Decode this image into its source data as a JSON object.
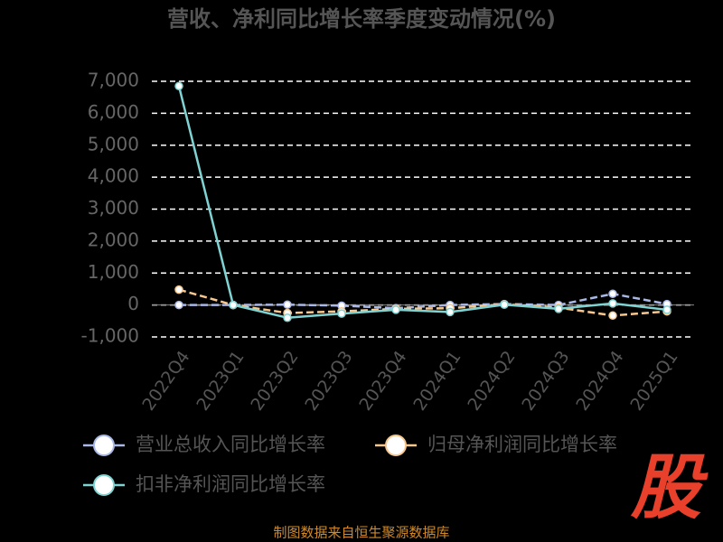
{
  "chart_data": {
    "type": "line",
    "title": "营收、净利同比增长率季度变动情况(%)",
    "categories": [
      "2022Q4",
      "2023Q1",
      "2023Q2",
      "2023Q3",
      "2023Q4",
      "2024Q1",
      "2024Q2",
      "2024Q3",
      "2024Q4",
      "2025Q1"
    ],
    "series": [
      {
        "name": "营业总收入同比增长率",
        "color": "#a9b8e6",
        "values": [
          0,
          0,
          10,
          -20,
          -100,
          0,
          30,
          0,
          350,
          30
        ]
      },
      {
        "name": "归母净利润同比增长率",
        "color": "#f7c78e",
        "values": [
          480,
          0,
          -250,
          -200,
          -120,
          -100,
          20,
          -80,
          -330,
          -200
        ]
      },
      {
        "name": "扣非净利润同比增长率",
        "color": "#7fd3d3",
        "values": [
          6850,
          0,
          -400,
          -270,
          -150,
          -220,
          10,
          -120,
          50,
          -150
        ]
      }
    ],
    "ylim": [
      -1000,
      7000
    ],
    "yticks": [
      {
        "value": -1000,
        "label": "-1,000"
      },
      0,
      {
        "value": 1000,
        "label": "1,000"
      },
      {
        "value": 2000,
        "label": "2,000"
      },
      {
        "value": 3000,
        "label": "3,000"
      },
      {
        "value": 4000,
        "label": "4,000"
      },
      {
        "value": 5000,
        "label": "5,000"
      },
      {
        "value": 6000,
        "label": "6,000"
      },
      {
        "value": 7000,
        "label": "7,000"
      }
    ],
    "grid": true,
    "source": "制图数据来自恒生聚源数据库",
    "logo": "股"
  }
}
